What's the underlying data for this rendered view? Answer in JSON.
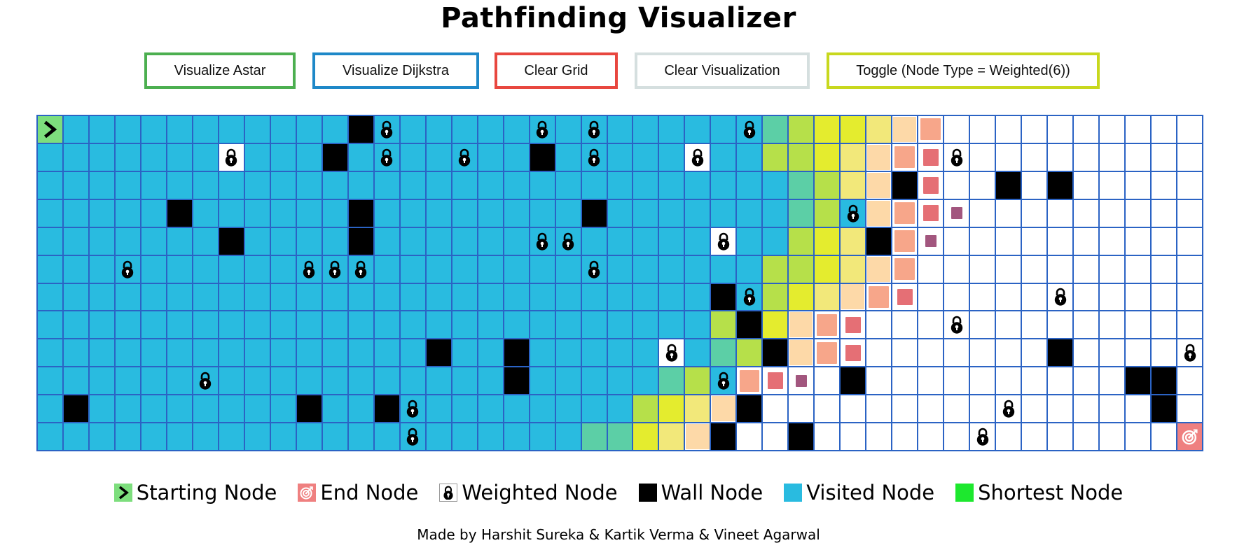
{
  "title": "Pathfinding Visualizer",
  "buttons": {
    "astar": {
      "label": "Visualize Astar",
      "color": "#4caf50"
    },
    "dijkstra": {
      "label": "Visualize Dijkstra",
      "color": "#1e88c8"
    },
    "clear_grid": {
      "label": "Clear Grid",
      "color": "#e8473f"
    },
    "clear_vis": {
      "label": "Clear Visualization",
      "color": "#d5dfdf"
    },
    "toggle": {
      "label": "Toggle (Node Type = Weighted(6))",
      "color": "#c8d81e"
    }
  },
  "grid": {
    "cols": 45,
    "rows": 12,
    "legend_codes": "S=start E=end v=visited .=unvisited w=wall k=weighted visited node K=weighted unvisited node, lowercase letters a-q are frontier cells (visit order color gradient)",
    "cells": [
      "Svvvvvvvvvvvwkvvvvvkvkvvvvvkcdeefgh..........",
      "vvvvvvvKvvvwvkvvkvvwvkvvvKvvddefghiK.........",
      "vvvvvvvvvvvvvvvvvvvvvvvvvvvvvcdfgwi..w.w.....",
      "vvvvvwvvvvvvwvvvvvvvvwvvvvvvvcdkghij.........",
      "vvvvvvvwvvvvwvvvvvvkkvvvvvKvvdefwhj..........",
      "vvvkvvvvvvkkkvvvvvvvvkvvvvvvddefgh...........",
      "vvvvvvvvvvvvvvvvvvvvvvvvvvwkdefghi.....K.....",
      "vvvvvvvvvvvvvvvvvvvvvvvvvvdweghi...K.........",
      "vvvvvvvvvvvvvvvwvvwvvvvvKvcdwghi.......w....K",
      "vvvvvvkvvvvvvvvvvvwvvvvvcdkhij.w..........ww.",
      "vwvvvvvvvvwvvwkvvvvvvvvdefgw.........K.....w.",
      "vvvvvvvvvvvvvvkvvvvvvccefgw..w......K.......E"
    ],
    "frontier_colors": {
      "c": "#5ccfa6",
      "d": "#b6e04a",
      "e": "#e4ec2e",
      "f": "#f2e87a",
      "g": "#fdd9a8",
      "h": "#f7a68a",
      "i": "#e56f75",
      "j": "#a2567e"
    },
    "colors": {
      "visited": "#29bbe0",
      "wall": "#000000",
      "start": "#7dde7d",
      "end": "#ef8080",
      "unvisited": "#ffffff",
      "border": "#2b63c4"
    }
  },
  "legend": [
    {
      "label": "Starting Node",
      "icon": "chevron-right-icon",
      "color": "#7dde7d"
    },
    {
      "label": "End Node",
      "icon": "target-icon",
      "color": "#ef8080"
    },
    {
      "label": "Weighted Node",
      "icon": "lock-icon",
      "color": "#ffffff"
    },
    {
      "label": "Wall Node",
      "icon": "wall-square",
      "color": "#000000"
    },
    {
      "label": "Visited Node",
      "icon": "visited-square",
      "color": "#29bbe0"
    },
    {
      "label": "Shortest Node",
      "icon": "shortest-square",
      "color": "#1de82e"
    }
  ],
  "credits": "Made by Harshit Sureka & Kartik Verma & Vineet Agarwal"
}
